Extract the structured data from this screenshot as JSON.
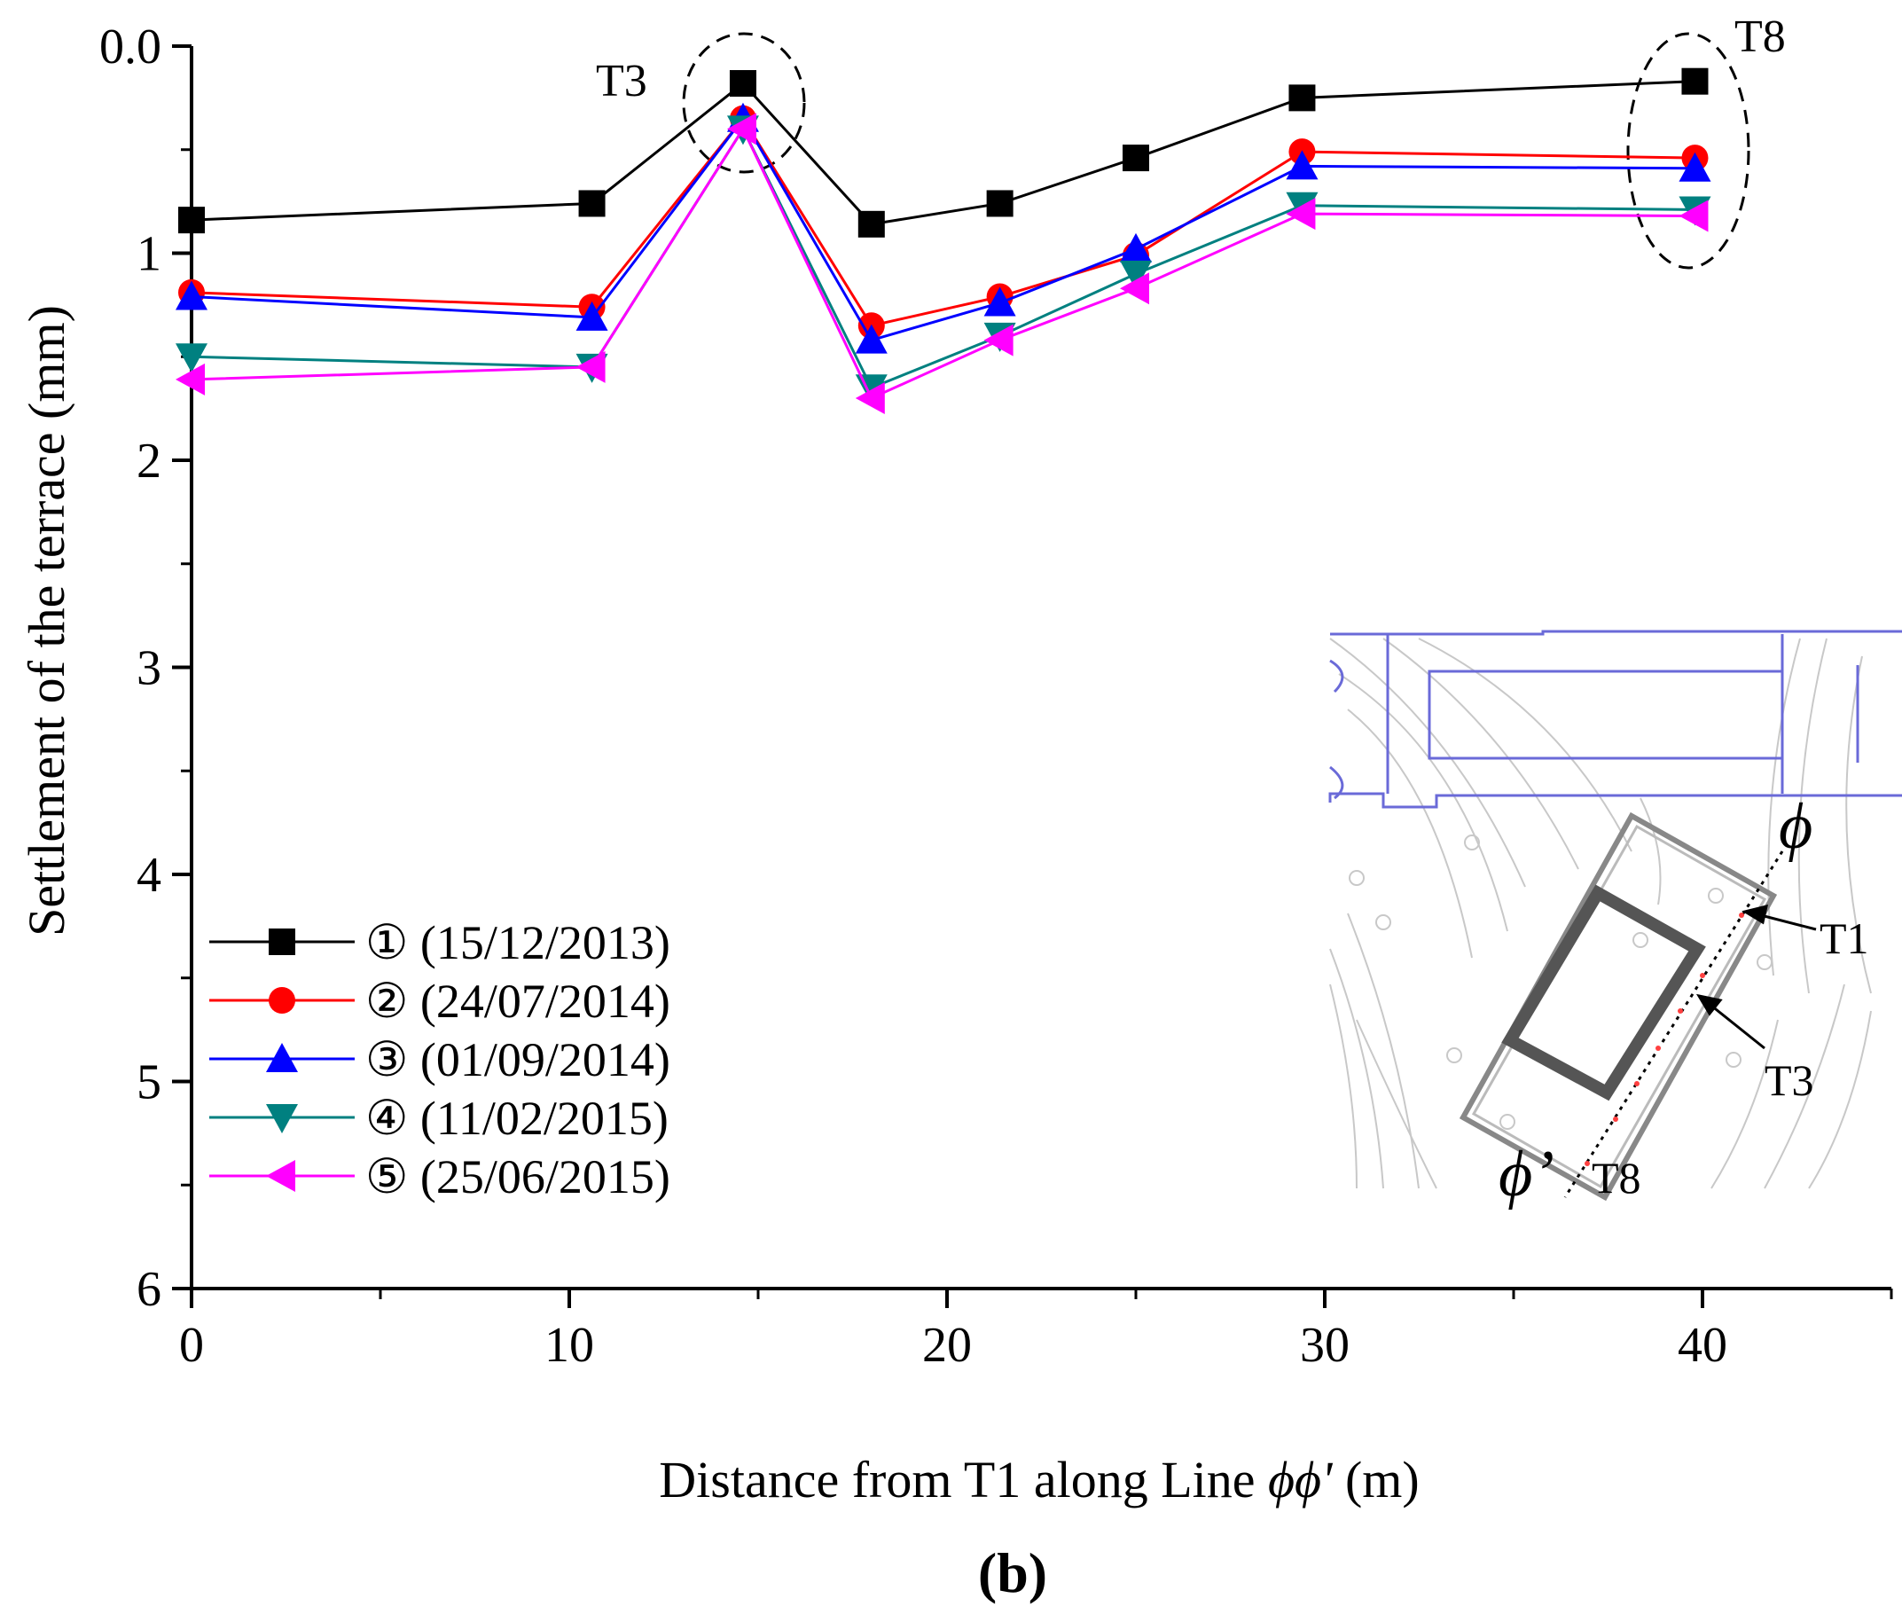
{
  "chart_data": {
    "type": "line",
    "panel_label": "(b)",
    "xlabel_prefix": "Distance from T1 along Line ",
    "xlabel_symbol": "ϕϕ'",
    "xlabel_suffix": " (m)",
    "ylabel": "Settlement of the terrace (mm)",
    "xlim": [
      0,
      45
    ],
    "ylim": [
      0,
      6
    ],
    "y_inverted": true,
    "x_major_ticks": [
      0,
      10,
      20,
      30,
      40
    ],
    "x_minor_ticks": [
      5,
      15,
      25,
      35,
      45
    ],
    "y_major_ticks": [
      0,
      1,
      2,
      3,
      4,
      5,
      6
    ],
    "y_minor_ticks": [
      0.5,
      1.5,
      2.5,
      3.5,
      4.5,
      5.5
    ],
    "x": [
      0,
      10.6,
      14.6,
      18,
      21.4,
      25,
      29.4,
      39.8
    ],
    "series": [
      {
        "name": "① (15/12/2013)",
        "color": "#000000",
        "marker": "square",
        "values": [
          0.84,
          0.76,
          0.18,
          0.86,
          0.76,
          0.54,
          0.25,
          0.17
        ]
      },
      {
        "name": "② (24/07/2014)",
        "color": "#ff0000",
        "marker": "circle",
        "values": [
          1.19,
          1.26,
          0.35,
          1.35,
          1.21,
          1.01,
          0.51,
          0.54
        ]
      },
      {
        "name": "③ (01/09/2014)",
        "color": "#0000ff",
        "marker": "triangle-up",
        "values": [
          1.21,
          1.31,
          0.35,
          1.42,
          1.24,
          0.98,
          0.58,
          0.59
        ]
      },
      {
        "name": "④ (11/02/2015)",
        "color": "#008080",
        "marker": "triangle-down",
        "values": [
          1.5,
          1.55,
          0.4,
          1.65,
          1.4,
          1.1,
          0.77,
          0.79
        ]
      },
      {
        "name": "⑤ (25/06/2015)",
        "color": "#ff00ff",
        "marker": "triangle-left",
        "values": [
          1.61,
          1.55,
          0.4,
          1.7,
          1.42,
          1.17,
          0.81,
          0.82
        ]
      }
    ],
    "annotations": [
      {
        "text": "T3",
        "x": 14.6
      },
      {
        "text": "T8",
        "x": 39.8
      }
    ],
    "legend_placement": "bottom-left",
    "inset": {
      "labels": [
        "T1",
        "T3",
        "T8"
      ],
      "phi_top": "ϕ",
      "phi_bottom": "ϕ’"
    }
  }
}
